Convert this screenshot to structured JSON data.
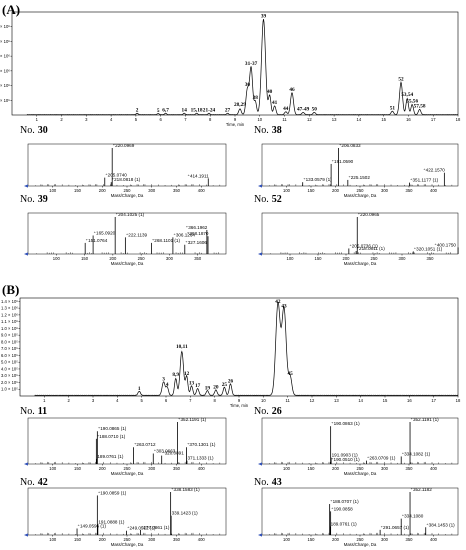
{
  "panels": [
    {
      "letter": "(A)"
    },
    {
      "letter": "(B)"
    }
  ],
  "chart_data": [
    {
      "id": "tic-A",
      "type": "line",
      "panel": "(A)",
      "xlabel": "Time, min",
      "ylabel": "Intensity",
      "xlim": [
        0,
        18
      ],
      "ylim": [
        0,
        3.5
      ],
      "x_ticks": [
        "1",
        "2",
        "3",
        "4",
        "5",
        "6",
        "7",
        "8",
        "9",
        "10",
        "11",
        "12",
        "13",
        "14",
        "15",
        "16",
        "17",
        "18"
      ],
      "y_ticks": [
        "5.0 × 10⁵",
        "1.0 × 10⁶",
        "1.5 × 10⁶",
        "2.0 × 10⁶",
        "2.5 × 10⁶",
        "3.0 × 10⁶"
      ],
      "y_tick_values": [
        0.5,
        1.0,
        1.5,
        2.0,
        2.5,
        3.0
      ],
      "peaks": [
        {
          "t": 5.05,
          "h": 0.05,
          "w": 0.04,
          "label": "2"
        },
        {
          "t": 5.9,
          "h": 0.04,
          "w": 0.04,
          "label": "5"
        },
        {
          "t": 6.2,
          "h": 0.05,
          "w": 0.04,
          "label": "6,7"
        },
        {
          "t": 6.95,
          "h": 0.05,
          "w": 0.04,
          "label": "14"
        },
        {
          "t": 7.45,
          "h": 0.05,
          "w": 0.04,
          "label": "15,18"
        },
        {
          "t": 7.95,
          "h": 0.05,
          "w": 0.04,
          "label": "21-24"
        },
        {
          "t": 8.7,
          "h": 0.05,
          "w": 0.04,
          "label": "27"
        },
        {
          "t": 9.2,
          "h": 0.2,
          "w": 0.05,
          "label": "28,29"
        },
        {
          "t": 9.5,
          "h": 0.85,
          "w": 0.06,
          "label": "30"
        },
        {
          "t": 9.65,
          "h": 1.6,
          "w": 0.06,
          "label": "31-37"
        },
        {
          "t": 9.82,
          "h": 0.45,
          "w": 0.05,
          "label": "38"
        },
        {
          "t": 10.15,
          "h": 3.25,
          "w": 0.08,
          "label": "39"
        },
        {
          "t": 10.4,
          "h": 0.65,
          "w": 0.05,
          "label": "40"
        },
        {
          "t": 10.6,
          "h": 0.3,
          "w": 0.05,
          "label": "41"
        },
        {
          "t": 11.05,
          "h": 0.1,
          "w": 0.05,
          "label": "44"
        },
        {
          "t": 11.3,
          "h": 0.75,
          "w": 0.06,
          "label": "46"
        },
        {
          "t": 11.75,
          "h": 0.08,
          "w": 0.05,
          "label": "47-49"
        },
        {
          "t": 12.2,
          "h": 0.08,
          "w": 0.05,
          "label": "50"
        },
        {
          "t": 15.35,
          "h": 0.12,
          "w": 0.05,
          "label": "51"
        },
        {
          "t": 15.7,
          "h": 1.1,
          "w": 0.06,
          "label": "52"
        },
        {
          "t": 15.95,
          "h": 0.55,
          "w": 0.05,
          "label": "53,54"
        },
        {
          "t": 16.15,
          "h": 0.35,
          "w": 0.05,
          "label": "55,56"
        },
        {
          "t": 16.45,
          "h": 0.18,
          "w": 0.05,
          "label": "57,58"
        }
      ]
    },
    {
      "id": "ms-A30",
      "type": "bar",
      "panel": "(A)",
      "label_no": "No.",
      "label_num": "30",
      "xlabel": "Mass/Charge, Da",
      "xlim": [
        50,
        450
      ],
      "x_ticks": [
        "100",
        "150",
        "200",
        "250",
        "300",
        "350",
        "400"
      ],
      "peaks": [
        {
          "mz": 205.074,
          "rel": 0.22,
          "label": "⁺205.0740"
        },
        {
          "mz": 218.0818,
          "rel": 0.1,
          "label": "⁺218.0818 (1)"
        },
        {
          "mz": 220.0969,
          "rel": 1.0,
          "label": "⁺220.0969"
        },
        {
          "mz": 414.1911,
          "rel": 0.2,
          "label": "⁺414.1911"
        }
      ]
    },
    {
      "id": "ms-A38",
      "type": "bar",
      "panel": "(A)",
      "label_no": "No.",
      "label_num": "38",
      "xlabel": "Mass/Charge, Da",
      "xlim": [
        50,
        450
      ],
      "x_ticks": [
        "100",
        "150",
        "200",
        "250",
        "300",
        "350",
        "400"
      ],
      "peaks": [
        {
          "mz": 133.0579,
          "rel": 0.1,
          "label": "⁺133.0579 (1)"
        },
        {
          "mz": 191.059,
          "rel": 0.58,
          "label": "⁺191.0590"
        },
        {
          "mz": 206.0833,
          "rel": 1.0,
          "label": "⁺206.0833"
        },
        {
          "mz": 225.1502,
          "rel": 0.16,
          "label": "⁺225.1502"
        },
        {
          "mz": 351.1177,
          "rel": 0.09,
          "label": "⁺351.1177 (1)"
        },
        {
          "mz": 422.157,
          "rel": 0.35,
          "label": "⁺422.1570"
        }
      ]
    },
    {
      "id": "ms-A39",
      "type": "bar",
      "panel": "(A)",
      "label_no": "No.",
      "label_num": "39",
      "xlabel": "Mass/Charge, Da",
      "xlim": [
        50,
        400
      ],
      "x_ticks": [
        "100",
        "150",
        "200",
        "250",
        "300",
        "350"
      ],
      "peaks": [
        {
          "mz": 151.0764,
          "rel": 0.3,
          "label": "⁺151.0764"
        },
        {
          "mz": 165.092,
          "rel": 0.5,
          "label": "⁺165.0920"
        },
        {
          "mz": 204.1025,
          "rel": 1.0,
          "label": "⁺204.1025 (1)"
        },
        {
          "mz": 222.1139,
          "rel": 0.45,
          "label": "⁺222.1139"
        },
        {
          "mz": 268.1101,
          "rel": 0.3,
          "label": "⁺268.1101 (1)"
        },
        {
          "mz": 306.1264,
          "rel": 0.45,
          "label": "⁺306.1264"
        },
        {
          "mz": 327.1606,
          "rel": 0.25,
          "label": "⁺327.1606"
        },
        {
          "mz": 366.1962,
          "rel": 0.65,
          "label": "⁺366.1962"
        },
        {
          "mz": 368.187,
          "rel": 0.48,
          "label": "⁺368.1870"
        }
      ]
    },
    {
      "id": "ms-A52",
      "type": "bar",
      "panel": "(A)",
      "label_no": "No.",
      "label_num": "52",
      "xlabel": "Mass/Charge, Da",
      "xlim": [
        50,
        400
      ],
      "x_ticks": [
        "100",
        "150",
        "200",
        "250",
        "300",
        "350"
      ],
      "peaks": [
        {
          "mz": 205.0736,
          "rel": 0.15,
          "label": "⁺205.0736 (1)"
        },
        {
          "mz": 218.0811,
          "rel": 0.08,
          "label": "⁺218.0811 (1)"
        },
        {
          "mz": 220.0965,
          "rel": 1.0,
          "label": "⁺220.0965"
        },
        {
          "mz": 320.1051,
          "rel": 0.07,
          "label": "⁺320.1051 (1)"
        },
        {
          "mz": 400.175,
          "rel": 0.18,
          "label": "⁺400.1750"
        }
      ]
    },
    {
      "id": "tic-B",
      "type": "line",
      "panel": "(B)",
      "xlabel": "Time, min",
      "ylabel": "Intensity",
      "xlim": [
        0,
        18
      ],
      "ylim": [
        0,
        1.45
      ],
      "x_ticks": [
        "1",
        "2",
        "3",
        "4",
        "5",
        "6",
        "7",
        "8",
        "9",
        "10",
        "11",
        "12",
        "13",
        "14",
        "15",
        "16",
        "17",
        "18"
      ],
      "y_ticks": [
        "1.0 × 10⁵",
        "2.0 × 10⁵",
        "3.0 × 10⁵",
        "4.0 × 10⁵",
        "5.0 × 10⁵",
        "6.0 × 10⁵",
        "7.0 × 10⁵",
        "8.0 × 10⁵",
        "9.0 × 10⁵",
        "1.0 × 10⁶",
        "1.1 × 10⁶",
        "1.2 × 10⁶",
        "1.3 × 10⁶",
        "1.4 × 10⁶"
      ],
      "y_tick_values": [
        0.1,
        0.2,
        0.3,
        0.4,
        0.5,
        0.6,
        0.7,
        0.8,
        0.9,
        1.0,
        1.1,
        1.2,
        1.3,
        1.4
      ],
      "peaks": [
        {
          "t": 4.9,
          "h": 0.06,
          "w": 0.05,
          "label": "1"
        },
        {
          "t": 5.9,
          "h": 0.2,
          "w": 0.06,
          "label": "3"
        },
        {
          "t": 6.05,
          "h": 0.12,
          "w": 0.05,
          "label": "4"
        },
        {
          "t": 6.4,
          "h": 0.25,
          "w": 0.05,
          "label": "8,9"
        },
        {
          "t": 6.65,
          "h": 0.65,
          "w": 0.07,
          "label": "10,11"
        },
        {
          "t": 6.85,
          "h": 0.28,
          "w": 0.05,
          "label": "12"
        },
        {
          "t": 7.05,
          "h": 0.14,
          "w": 0.05,
          "label": "13"
        },
        {
          "t": 7.3,
          "h": 0.1,
          "w": 0.05,
          "label": "17"
        },
        {
          "t": 7.7,
          "h": 0.07,
          "w": 0.05,
          "label": "19"
        },
        {
          "t": 8.05,
          "h": 0.08,
          "w": 0.05,
          "label": "20"
        },
        {
          "t": 8.4,
          "h": 0.12,
          "w": 0.05,
          "label": "25"
        },
        {
          "t": 8.65,
          "h": 0.17,
          "w": 0.05,
          "label": "26"
        },
        {
          "t": 10.6,
          "h": 1.35,
          "w": 0.09,
          "label": "42"
        },
        {
          "t": 10.85,
          "h": 1.28,
          "w": 0.09,
          "label": "43"
        },
        {
          "t": 11.1,
          "h": 0.28,
          "w": 0.07,
          "label": "45"
        }
      ]
    },
    {
      "id": "ms-B11",
      "type": "bar",
      "panel": "(B)",
      "label_no": "No.",
      "label_num": "11",
      "xlabel": "Mass/Charge, Da",
      "xlim": [
        50,
        450
      ],
      "x_ticks": [
        "100",
        "150",
        "200",
        "250",
        "300",
        "350",
        "400"
      ],
      "peaks": [
        {
          "mz": 188.071,
          "rel": 0.6,
          "label": "⁺188.0710 (1)"
        },
        {
          "mz": 189.0761,
          "rel": 0.12,
          "label": "189.0761 (1)"
        },
        {
          "mz": 190.0865,
          "rel": 0.78,
          "label": "⁺190.0865 (1)"
        },
        {
          "mz": 263.0712,
          "rel": 0.4,
          "label": "⁺263.0712"
        },
        {
          "mz": 303.0663,
          "rel": 0.25,
          "label": "⁺303.0663"
        },
        {
          "mz": 320.0891,
          "rel": 0.2,
          "label": "⁺320.0891"
        },
        {
          "mz": 352.1191,
          "rel": 1.0,
          "label": "⁺352.1191 (1)"
        },
        {
          "mz": 370.1301,
          "rel": 0.4,
          "label": "⁺370.1301 (1)"
        },
        {
          "mz": 371.1333,
          "rel": 0.08,
          "label": "371.1333 (1)"
        }
      ]
    },
    {
      "id": "ms-B26",
      "type": "bar",
      "panel": "(B)",
      "label_no": "No.",
      "label_num": "26",
      "xlabel": "Mass/Charge, Da",
      "xlim": [
        50,
        450
      ],
      "x_ticks": [
        "100",
        "150",
        "200",
        "250",
        "300",
        "350",
        "400"
      ],
      "peaks": [
        {
          "mz": 190.051,
          "rel": 0.05,
          "label": "⁺190.0510 (1)"
        },
        {
          "mz": 190.0863,
          "rel": 0.9,
          "label": "⁺190.0863 (1)"
        },
        {
          "mz": 191.0903,
          "rel": 0.15,
          "label": "191.0903 (1)"
        },
        {
          "mz": 263.0709,
          "rel": 0.08,
          "label": "⁺263.0709 (1)"
        },
        {
          "mz": 334.1082,
          "rel": 0.18,
          "label": "⁺334.1082 (1)"
        },
        {
          "mz": 352.1191,
          "rel": 1.0,
          "label": "⁺352.1191 (1)"
        }
      ]
    },
    {
      "id": "ms-B42",
      "type": "bar",
      "panel": "(B)",
      "label_no": "No.",
      "label_num": "42",
      "xlabel": "Mass/Charge, Da",
      "xlim": [
        50,
        450
      ],
      "x_ticks": [
        "100",
        "150",
        "200",
        "250",
        "300",
        "350",
        "400"
      ],
      "peaks": [
        {
          "mz": 149.0596,
          "rel": 0.15,
          "label": "⁺149.0596 (1)"
        },
        {
          "mz": 190.0859,
          "rel": 0.92,
          "label": "⁺190.0859 (1)"
        },
        {
          "mz": 191.0888,
          "rel": 0.25,
          "label": "191.0888 (1)"
        },
        {
          "mz": 249.0912,
          "rel": 0.1,
          "label": "⁺249.0912 (1)"
        },
        {
          "mz": 277.0861,
          "rel": 0.12,
          "label": "⁺277.0861 (1)"
        },
        {
          "mz": 338.1583,
          "rel": 1.0,
          "label": "⁺338.1583 (1)"
        },
        {
          "mz": 339.1423,
          "rel": 0.45,
          "label": "339.1423 (1)"
        }
      ]
    },
    {
      "id": "ms-B43",
      "type": "bar",
      "panel": "(B)",
      "label_no": "No.",
      "label_num": "43",
      "xlabel": "Mass/Charge, Da",
      "xlim": [
        50,
        450
      ],
      "x_ticks": [
        "100",
        "150",
        "200",
        "250",
        "300",
        "350",
        "400"
      ],
      "peaks": [
        {
          "mz": 188.0707,
          "rel": 0.72,
          "label": "⁺188.0707 (1)"
        },
        {
          "mz": 189.0761,
          "rel": 0.2,
          "label": "189.0761 (1)"
        },
        {
          "mz": 190.0858,
          "rel": 0.55,
          "label": "⁺190.0858"
        },
        {
          "mz": 291.0657,
          "rel": 0.12,
          "label": "⁺291.0657 (1)"
        },
        {
          "mz": 334.108,
          "rel": 0.38,
          "label": "⁺334.1080"
        },
        {
          "mz": 352.1182,
          "rel": 1.0,
          "label": "⁺352.1182"
        },
        {
          "mz": 384.1453,
          "rel": 0.18,
          "label": "⁺384.1453 (1)"
        }
      ]
    }
  ]
}
